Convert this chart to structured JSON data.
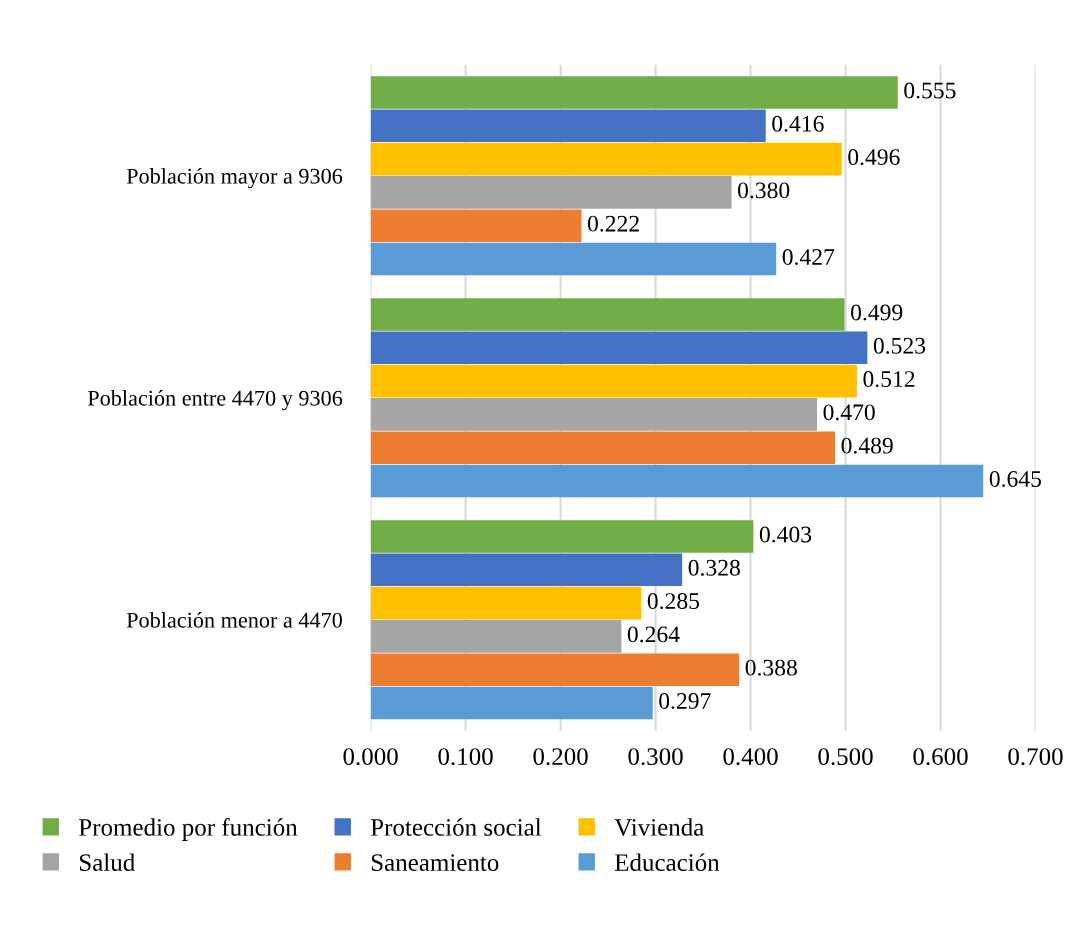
{
  "chart_data": {
    "type": "bar",
    "orientation": "horizontal",
    "categories": [
      "Población mayor a 9306",
      "Población entre 4470 y 9306",
      "Población menor a 4470"
    ],
    "series": [
      {
        "name": "Promedio por función",
        "color": "#70ad47",
        "values": [
          0.555,
          0.499,
          0.403
        ]
      },
      {
        "name": "Protección social",
        "color": "#4472c4",
        "values": [
          0.416,
          0.523,
          0.328
        ]
      },
      {
        "name": "Vivienda",
        "color": "#ffc000",
        "values": [
          0.496,
          0.512,
          0.285
        ]
      },
      {
        "name": "Salud",
        "color": "#a5a5a5",
        "values": [
          0.38,
          0.47,
          0.264
        ],
        "value_labels": [
          "0.380",
          "0.470",
          "0.264"
        ]
      },
      {
        "name": "Saneamiento",
        "color": "#ed7d31",
        "values": [
          0.222,
          0.489,
          0.388
        ]
      },
      {
        "name": "Educación",
        "color": "#5b9bd5",
        "values": [
          0.427,
          0.645,
          0.297
        ]
      }
    ],
    "xlim": [
      0,
      0.7
    ],
    "xticks": [
      {
        "value": 0,
        "label": "0.000"
      },
      {
        "value": 0.1,
        "label": "0.100"
      },
      {
        "value": 0.2,
        "label": "0.200"
      },
      {
        "value": 0.3,
        "label": "0.300"
      },
      {
        "value": 0.4,
        "label": "0.400"
      },
      {
        "value": 0.5,
        "label": "0.500"
      },
      {
        "value": 0.6,
        "label": "0.600"
      },
      {
        "value": 0.7,
        "label": "0.700"
      }
    ],
    "grid": "x",
    "legend": "bottom",
    "data_labels": true
  }
}
